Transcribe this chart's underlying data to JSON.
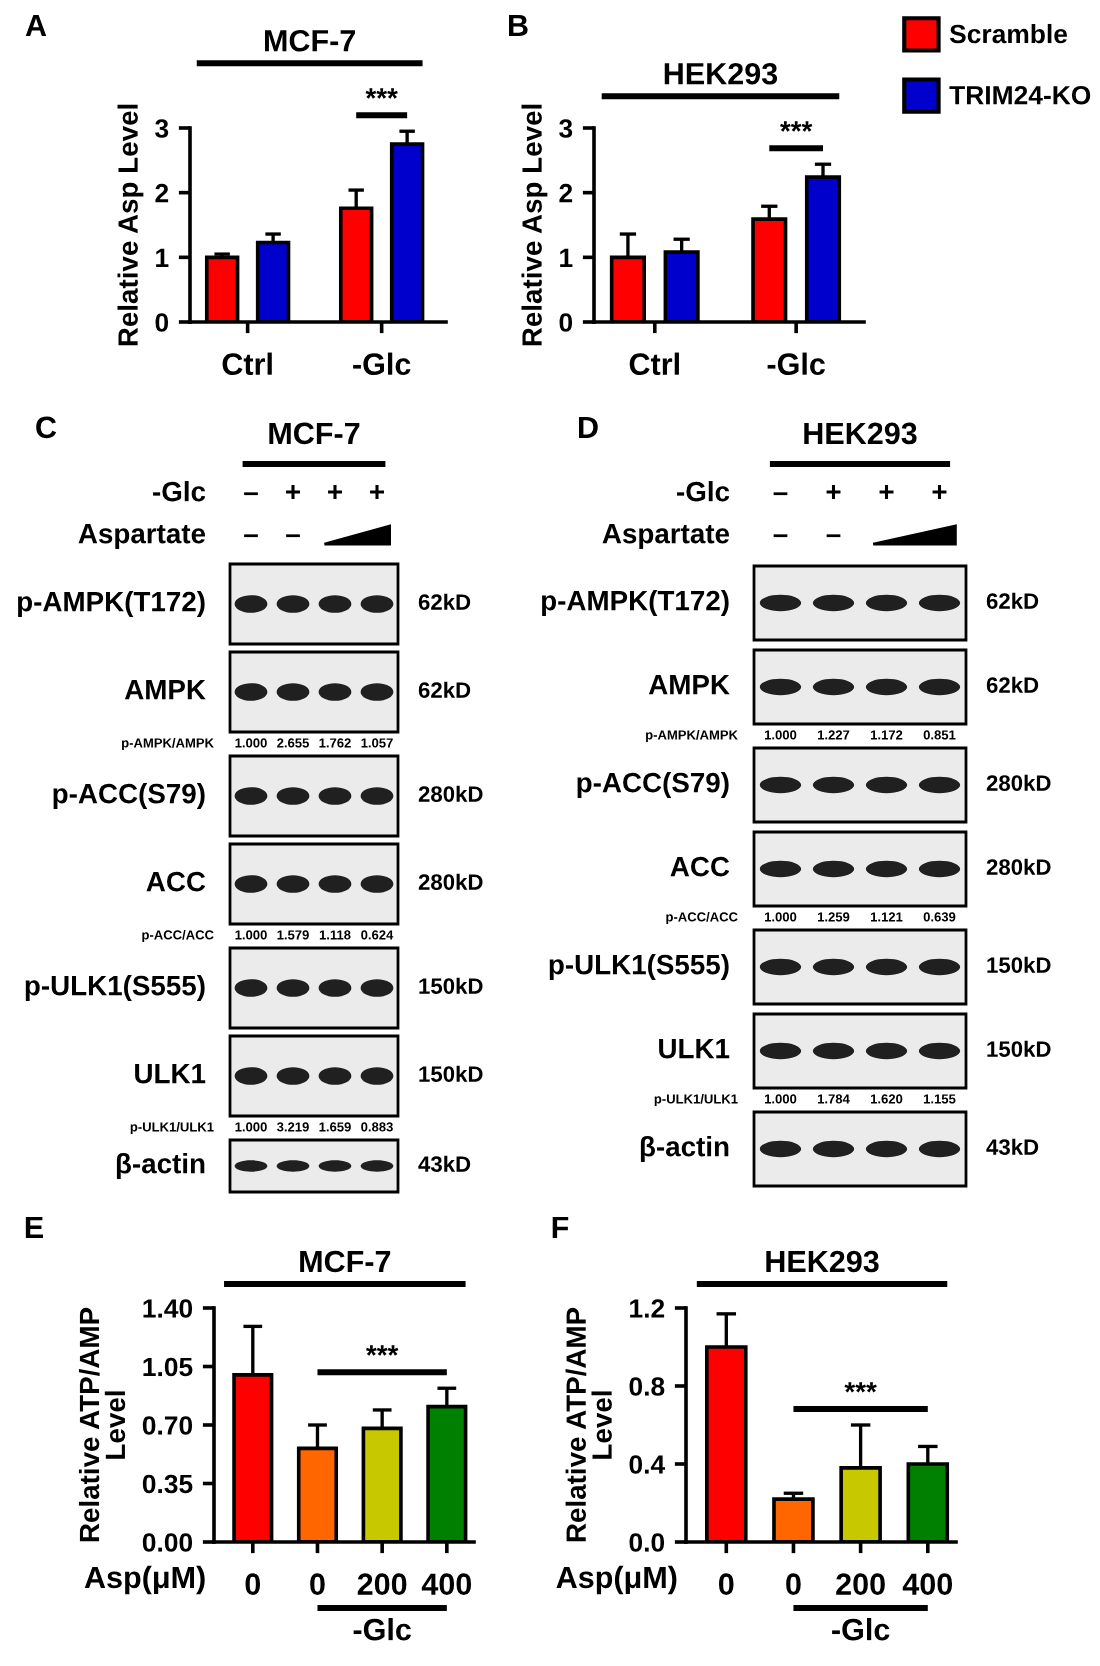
{
  "chart_data": [
    {
      "type": "bar",
      "title": "MCF-7",
      "ylabel": "Relative Asp Level",
      "categories": [
        "Ctrl",
        "-Glc"
      ],
      "series": [
        {
          "color": "#ff0000",
          "values": [
            1.0,
            1.76
          ],
          "errors": [
            [
              1.0,
              1.05
            ],
            [
              1.76,
              2.04
            ]
          ]
        },
        {
          "color": "#0000cc",
          "values": [
            1.23,
            2.75
          ],
          "errors": [
            [
              1.23,
              1.36
            ],
            [
              2.75,
              2.95
            ]
          ]
        }
      ],
      "ylim": [
        0,
        3
      ],
      "yticks": [
        0,
        1,
        2,
        3
      ],
      "annotations": [
        "A",
        "***"
      ]
    },
    {
      "type": "bar",
      "title": "HEK293",
      "ylabel": "Relative Asp Level",
      "categories": [
        "Ctrl",
        "-Glc"
      ],
      "series": [
        {
          "name": "Scramble",
          "color": "#ff0000",
          "values": [
            1.0,
            1.59
          ],
          "errors": [
            [
              1.0,
              1.36
            ],
            [
              1.59,
              1.79
            ]
          ]
        },
        {
          "name": "TRIM24-KO",
          "color": "#0000cc",
          "values": [
            1.08,
            2.24
          ],
          "errors": [
            [
              1.08,
              1.28
            ],
            [
              2.24,
              2.44
            ]
          ]
        }
      ],
      "ylim": [
        0,
        3
      ],
      "yticks": [
        0,
        1,
        2,
        3
      ],
      "legend": "top right",
      "annotations": [
        "B",
        "***"
      ]
    },
    {
      "type": "other",
      "title": "MCF-7",
      "categories": [
        "p-AMPK(T172)",
        "AMPK",
        "p-ACC(S79)",
        "ACC",
        "p-ULK1(S555)",
        "ULK1",
        "β-actin"
      ],
      "y2_categories": [
        "62kD",
        "62kD",
        "280kD",
        "280kD",
        "150kD",
        "150kD",
        "43kD"
      ],
      "annotations": [
        "C",
        "-Glc",
        "–",
        "+",
        "+",
        "+",
        "Aspartate",
        "–",
        "–",
        "p-AMPK/AMPK",
        "1.000",
        "2.655",
        "1.762",
        "1.057",
        "p-ACC/ACC",
        "1.000",
        "1.579",
        "1.118",
        "0.624",
        "p-ULK1/ULK1",
        "1.000",
        "3.219",
        "1.659",
        "0.883"
      ]
    },
    {
      "type": "other",
      "title": "HEK293",
      "categories": [
        "p-AMPK(T172)",
        "AMPK",
        "p-ACC(S79)",
        "ACC",
        "p-ULK1(S555)",
        "ULK1",
        "β-actin"
      ],
      "y2_categories": [
        "62kD",
        "62kD",
        "280kD",
        "280kD",
        "150kD",
        "150kD",
        "43kD"
      ],
      "annotations": [
        "D",
        "-Glc",
        "–",
        "+",
        "+",
        "+",
        "Aspartate",
        "–",
        "–",
        "p-AMPK/AMPK",
        "1.000",
        "1.227",
        "1.172",
        "0.851",
        "p-ACC/ACC",
        "1.000",
        "1.259",
        "1.121",
        "0.639",
        "p-ULK1/ULK1",
        "1.000",
        "1.784",
        "1.620",
        "1.155"
      ]
    },
    {
      "type": "bar",
      "title": "MCF-7",
      "xlabel": "Asp(μM)",
      "ylabel": "Relative ATP/AMP\nLevel",
      "categories": [
        "0",
        "0",
        "200",
        "400"
      ],
      "values": [
        1.0,
        0.56,
        0.68,
        0.81
      ],
      "colors": [
        "#ff0000",
        "#ff6600",
        "#c8c800",
        "#008000"
      ],
      "errors": [
        [
          1.0,
          1.29
        ],
        [
          0.56,
          0.7
        ],
        [
          0.68,
          0.79
        ],
        [
          0.81,
          0.92
        ]
      ],
      "ylim": [
        0,
        1.4
      ],
      "yticks": [
        {
          "value": 0,
          "label": "0.00"
        },
        0.35,
        {
          "value": 0.7,
          "label": "0.70"
        },
        1.05,
        {
          "value": 1.4,
          "label": "1.40"
        }
      ],
      "annotations": [
        "E",
        "***",
        "-Glc"
      ]
    },
    {
      "type": "bar",
      "title": "HEK293",
      "xlabel": "Asp(μM)",
      "ylabel": "Relative ATP/AMP\nLevel",
      "categories": [
        "0",
        "0",
        "200",
        "400"
      ],
      "values": [
        1.0,
        0.22,
        0.38,
        0.4
      ],
      "colors": [
        "#ff0000",
        "#ff6600",
        "#c8c800",
        "#008000"
      ],
      "errors": [
        [
          1.0,
          1.17
        ],
        [
          0.22,
          0.25
        ],
        [
          0.38,
          0.6
        ],
        [
          0.4,
          0.49
        ]
      ],
      "ylim": [
        0,
        1.2
      ],
      "yticks": [
        {
          "value": 0,
          "label": "0.0"
        },
        0.4,
        0.8,
        1.2
      ],
      "annotations": [
        "F",
        "***",
        "-Glc"
      ]
    }
  ]
}
